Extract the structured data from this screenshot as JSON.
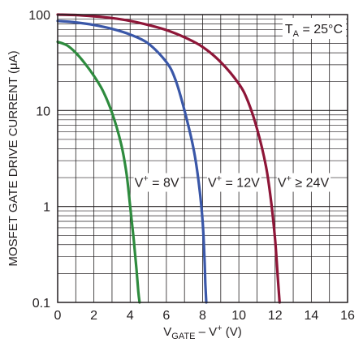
{
  "chart_data": {
    "type": "line",
    "xlabel": {
      "main": "V",
      "sub": "GATE",
      "mid": " – V",
      "sup": "+",
      "tail": " (V)"
    },
    "ylabel": "MOSFET GATE DRIVE CURRENT (μA)",
    "xlim": [
      0,
      16
    ],
    "ylim": [
      0.1,
      100
    ],
    "y_scale": "log",
    "grid": true,
    "x_ticks": [
      "0",
      "2",
      "4",
      "6",
      "8",
      "10",
      "12",
      "14",
      "16"
    ],
    "y_ticks": [
      "0.1",
      "1",
      "10",
      "100"
    ],
    "annotation_temp": {
      "main": "T",
      "sub": "A",
      "tail": " = 25°C"
    },
    "series": [
      {
        "name": "V+ = 8V",
        "label": {
          "main": "V",
          "sup": "+",
          "tail": " = 8V"
        },
        "color": "#2e8b3e",
        "x": [
          0,
          0.5,
          1,
          1.5,
          2,
          2.5,
          3,
          3.5,
          3.8,
          4.0,
          4.2,
          4.35,
          4.45,
          4.52
        ],
        "y": [
          52,
          48,
          40,
          31,
          23,
          16,
          9.5,
          4.5,
          2.2,
          1.0,
          0.45,
          0.22,
          0.13,
          0.1
        ]
      },
      {
        "name": "V+ = 12V",
        "label": {
          "main": "V",
          "sup": "+",
          "tail": " = 12V"
        },
        "color": "#3a57a8",
        "x": [
          0,
          1,
          2,
          3,
          4,
          5,
          6,
          6.5,
          7,
          7.5,
          7.8,
          8.0,
          8.1,
          8.15,
          8.2
        ],
        "y": [
          86,
          83,
          78,
          71,
          62,
          50,
          32,
          21,
          10,
          4.0,
          1.7,
          0.7,
          0.3,
          0.16,
          0.1
        ]
      },
      {
        "name": "V+ ≥ 24V",
        "label": {
          "main": "V",
          "sup": "+",
          "tail": " ≥ 24V"
        },
        "color": "#8e1638",
        "x": [
          0,
          1,
          2,
          3,
          4,
          5,
          6,
          7,
          8,
          9,
          10,
          10.5,
          11,
          11.5,
          11.8,
          12.0,
          12.15,
          12.25
        ],
        "y": [
          100,
          99,
          96,
          92,
          86,
          78,
          69,
          58,
          46,
          32,
          19,
          12.5,
          6.5,
          2.6,
          1.05,
          0.45,
          0.18,
          0.1
        ]
      }
    ]
  }
}
